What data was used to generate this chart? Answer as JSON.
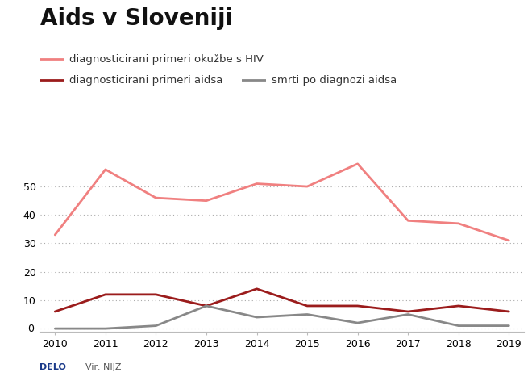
{
  "title": "Aids v Sloveniji",
  "years": [
    2010,
    2011,
    2012,
    2013,
    2014,
    2015,
    2016,
    2017,
    2018,
    2019
  ],
  "hiv": [
    33,
    56,
    46,
    45,
    51,
    50,
    58,
    38,
    37,
    31
  ],
  "aids": [
    6,
    12,
    12,
    8,
    14,
    8,
    8,
    6,
    8,
    6
  ],
  "deaths": [
    0,
    0,
    1,
    8,
    4,
    5,
    2,
    5,
    1,
    1
  ],
  "hiv_color": "#f08080",
  "aids_color": "#9b1c1c",
  "deaths_color": "#888888",
  "hiv_label": "diagnosticirani primeri okužbe s HIV",
  "aids_label": "diagnosticirani primeri aidsa",
  "deaths_label": "smrti po diagnozi aidsa",
  "yticks": [
    0,
    10,
    20,
    30,
    40,
    50
  ],
  "ylim": [
    -1,
    62
  ],
  "xlim": [
    2009.7,
    2019.3
  ],
  "background_color": "#ffffff",
  "source_left": "DELO",
  "source_right": "Vir: NIJZ",
  "title_fontsize": 20,
  "legend_fontsize": 9.5,
  "tick_fontsize": 9,
  "footer_fontsize": 8
}
